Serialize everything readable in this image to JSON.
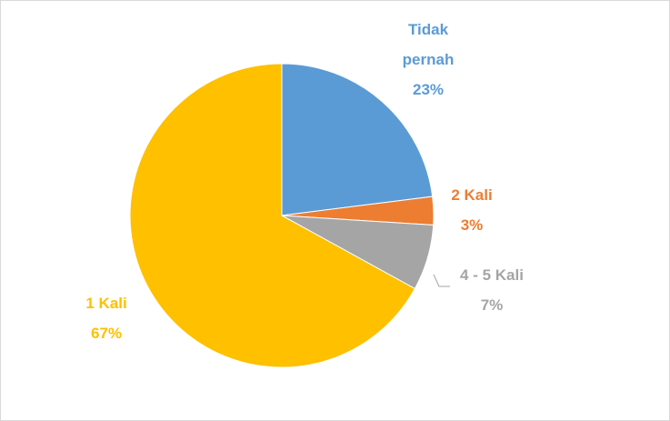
{
  "chart_data": {
    "type": "pie",
    "categories": [
      "Tidak pernah",
      "2 Kali",
      "4 - 5 Kali",
      "1 Kali"
    ],
    "values": [
      23,
      3,
      7,
      67
    ],
    "value_labels": [
      "23%",
      "3%",
      "7%",
      "67%"
    ],
    "colors": [
      "#5b9bd5",
      "#ed7d31",
      "#a5a5a5",
      "#ffc000"
    ]
  }
}
